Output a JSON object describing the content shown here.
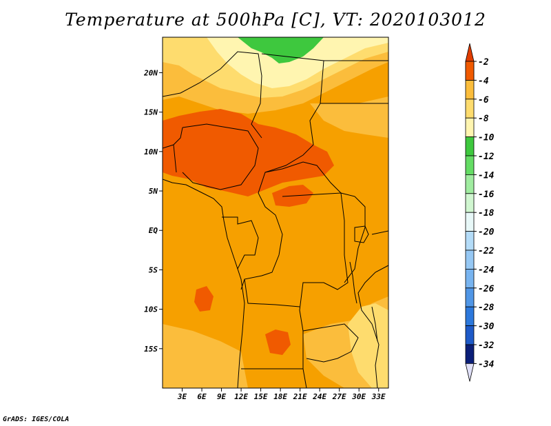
{
  "title": "Temperature at 500hPa [C], VT: 2020103012",
  "credit": "GrADS: IGES/COLA",
  "map": {
    "lon_range": [
      0,
      34.5
    ],
    "lat_range": [
      -20,
      24.5
    ],
    "x_ticks": [
      {
        "value": 3,
        "label": "3E"
      },
      {
        "value": 6,
        "label": "6E"
      },
      {
        "value": 9,
        "label": "9E"
      },
      {
        "value": 12,
        "label": "12E"
      },
      {
        "value": 15,
        "label": "15E"
      },
      {
        "value": 18,
        "label": "18E"
      },
      {
        "value": 21,
        "label": "21E"
      },
      {
        "value": 24,
        "label": "24E"
      },
      {
        "value": 27,
        "label": "27E"
      },
      {
        "value": 30,
        "label": "30E"
      },
      {
        "value": 33,
        "label": "33E"
      }
    ],
    "y_ticks": [
      {
        "value": 20,
        "label": "20N"
      },
      {
        "value": 15,
        "label": "15N"
      },
      {
        "value": 10,
        "label": "10N"
      },
      {
        "value": 5,
        "label": "5N"
      },
      {
        "value": 0,
        "label": "EQ"
      },
      {
        "value": -5,
        "label": "5S"
      },
      {
        "value": -10,
        "label": "10S"
      },
      {
        "value": -15,
        "label": "15S"
      }
    ],
    "background_color": "#f6a000"
  },
  "colorbar": {
    "levels": [
      {
        "label": "-2",
        "color": "#f05a00"
      },
      {
        "label": "-4",
        "color": "#f6a000"
      },
      {
        "label": "-6",
        "color": "#fbbd3c"
      },
      {
        "label": "-8",
        "color": "#fedc6e"
      },
      {
        "label": "-10",
        "color": "#fff5b0"
      },
      {
        "label": "-12",
        "color": "#3ec83e"
      },
      {
        "label": "-14",
        "color": "#64dc64"
      },
      {
        "label": "-16",
        "color": "#a0eca0"
      },
      {
        "label": "-18",
        "color": "#d0f6d0"
      },
      {
        "label": "-20",
        "color": "#e8f8f8"
      },
      {
        "label": "-22",
        "color": "#b4dcf8"
      },
      {
        "label": "-24",
        "color": "#96c8f4"
      },
      {
        "label": "-26",
        "color": "#78b4f0"
      },
      {
        "label": "-28",
        "color": "#5096e6"
      },
      {
        "label": "-30",
        "color": "#2c78dc"
      },
      {
        "label": "-32",
        "color": "#1e5ac8"
      },
      {
        "label": "-34",
        "color": "#0a1e78"
      }
    ],
    "top_arrow_color": "#e03c00",
    "bottom_arrow_color": "#e0e0f8"
  }
}
